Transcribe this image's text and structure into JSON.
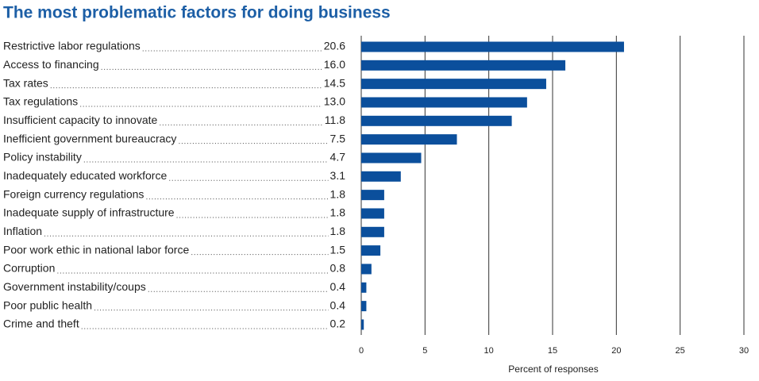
{
  "chart_data": {
    "type": "barh",
    "title": "The most problematic factors for doing business",
    "categories": [
      "Restrictive labor regulations",
      "Access to financing",
      "Tax rates",
      "Tax regulations",
      "Insufficient capacity to innovate",
      "Inefficient government bureaucracy",
      "Policy instability",
      "Inadequately educated workforce",
      "Foreign currency regulations",
      "Inadequate supply of infrastructure",
      "Inflation",
      "Poor work ethic in national labor force",
      "Corruption",
      "Government instability/coups",
      "Poor public health",
      "Crime and theft"
    ],
    "values": [
      20.6,
      16.0,
      14.5,
      13.0,
      11.8,
      7.5,
      4.7,
      3.1,
      1.8,
      1.8,
      1.8,
      1.5,
      0.8,
      0.4,
      0.4,
      0.2
    ],
    "value_labels": [
      "20.6",
      "16.0",
      "14.5",
      "13.0",
      "11.8",
      "7.5",
      "4.7",
      "3.1",
      "1.8",
      "1.8",
      "1.8",
      "1.5",
      "0.8",
      "0.4",
      "0.4",
      "0.2"
    ],
    "color": "#0b4f9c",
    "xlabel": "Percent of responses",
    "xlim": [
      0,
      30
    ],
    "xticks": [
      0,
      5,
      10,
      15,
      20,
      25,
      30
    ],
    "grid": true
  }
}
